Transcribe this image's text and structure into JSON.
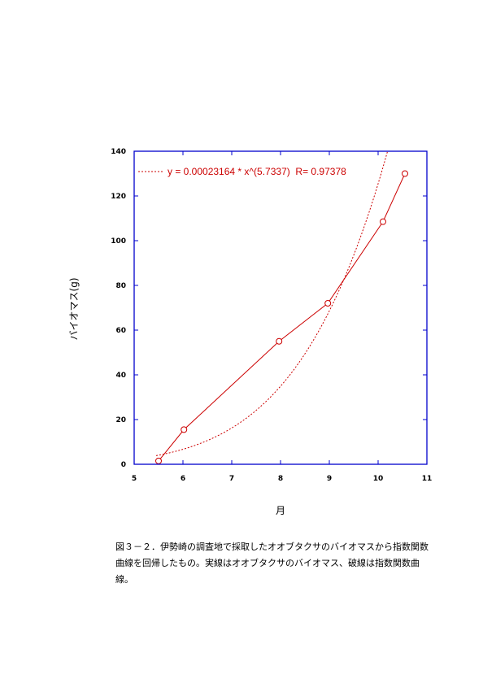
{
  "chart_data": {
    "type": "line",
    "xlabel": "月",
    "ylabel": "バイオマス(g)",
    "xlim": [
      5,
      11
    ],
    "ylim": [
      0,
      140
    ],
    "xticks": [
      5,
      6,
      7,
      8,
      9,
      10,
      11
    ],
    "yticks": [
      0,
      20,
      40,
      60,
      80,
      100,
      120,
      140
    ],
    "grid": false,
    "legend_position": "top-left",
    "series": [
      {
        "style": "solid-with-circle-markers",
        "color": "#cc0000",
        "points": [
          {
            "x": 5.5,
            "y": 1.5
          },
          {
            "x": 6.02,
            "y": 15.5
          },
          {
            "x": 7.97,
            "y": 55.0
          },
          {
            "x": 8.97,
            "y": 72.0
          },
          {
            "x": 10.1,
            "y": 108.5
          },
          {
            "x": 10.55,
            "y": 130.0
          }
        ]
      },
      {
        "name": "y = 0.00023164 * x^(5.7337)  R= 0.97378",
        "style": "dotted-fit",
        "color": "#cc0000",
        "function": "power",
        "a": 0.00023164,
        "b": 5.7337,
        "r": 0.97378
      }
    ]
  },
  "caption": "図３－２．伊勢崎の調査地で採取したオオブタクサのバイオマスから指数関数曲線を回帰したもの。実線はオオブタクサのバイオマス、破線は指数関数曲線。"
}
